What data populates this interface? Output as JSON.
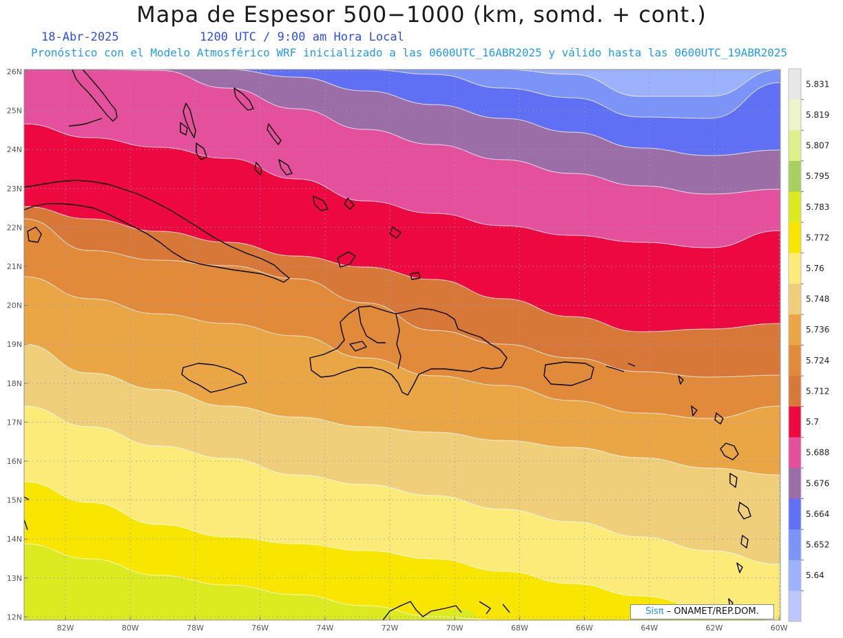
{
  "header": {
    "title": "Mapa de Espesor 500−1000 (km, somd. + cont.)",
    "date": "18-Abr-2025",
    "time": "1200 UTC / 9:00 am Hora Local",
    "forecast_note": "Pronóstico con el Modelo Atmosférico WRF inicializado a las 0600UTC_16ABR2025 y válido hasta las  0600UTC_19ABR2025"
  },
  "axes": {
    "lat_labels": [
      "26N",
      "25N",
      "24N",
      "23N",
      "22N",
      "21N",
      "20N",
      "19N",
      "18N",
      "17N",
      "16N",
      "15N",
      "14N",
      "13N",
      "12N"
    ],
    "lon_labels": [
      "82W",
      "80W",
      "78W",
      "76W",
      "74W",
      "72W",
      "70W",
      "68W",
      "66W",
      "64W",
      "62W",
      "60W"
    ]
  },
  "colorbar": {
    "labels": [
      "5.831",
      "5.819",
      "5.807",
      "5.795",
      "5.783",
      "5.772",
      "5.76",
      "5.748",
      "5.736",
      "5.724",
      "5.712",
      "5.7",
      "5.688",
      "5.676",
      "5.664",
      "5.652",
      "5.64"
    ],
    "colors": [
      "#e8e8e8",
      "#eef5c8",
      "#dcf08c",
      "#a8d060",
      "#dcea20",
      "#f8e600",
      "#fceb78",
      "#f0cf7a",
      "#eaa544",
      "#e08a3a",
      "#d87838",
      "#ee0840",
      "#e4509c",
      "#9c6ea8",
      "#6070f4",
      "#7c94f8",
      "#9cb2fc",
      "#bcc8fc"
    ]
  },
  "bands": {
    "colors": [
      "#bcc8fc",
      "#9cb2fc",
      "#7c94f8",
      "#6070f4",
      "#9c6ea8",
      "#e4509c",
      "#ee0840",
      "#d87838",
      "#e08a3a",
      "#eaa544",
      "#f0cf7a",
      "#fceb78",
      "#f8e600",
      "#dcea20"
    ]
  },
  "credit": {
    "brand": "Sisπ",
    "org": " – ONAMET/REP.DOM."
  }
}
